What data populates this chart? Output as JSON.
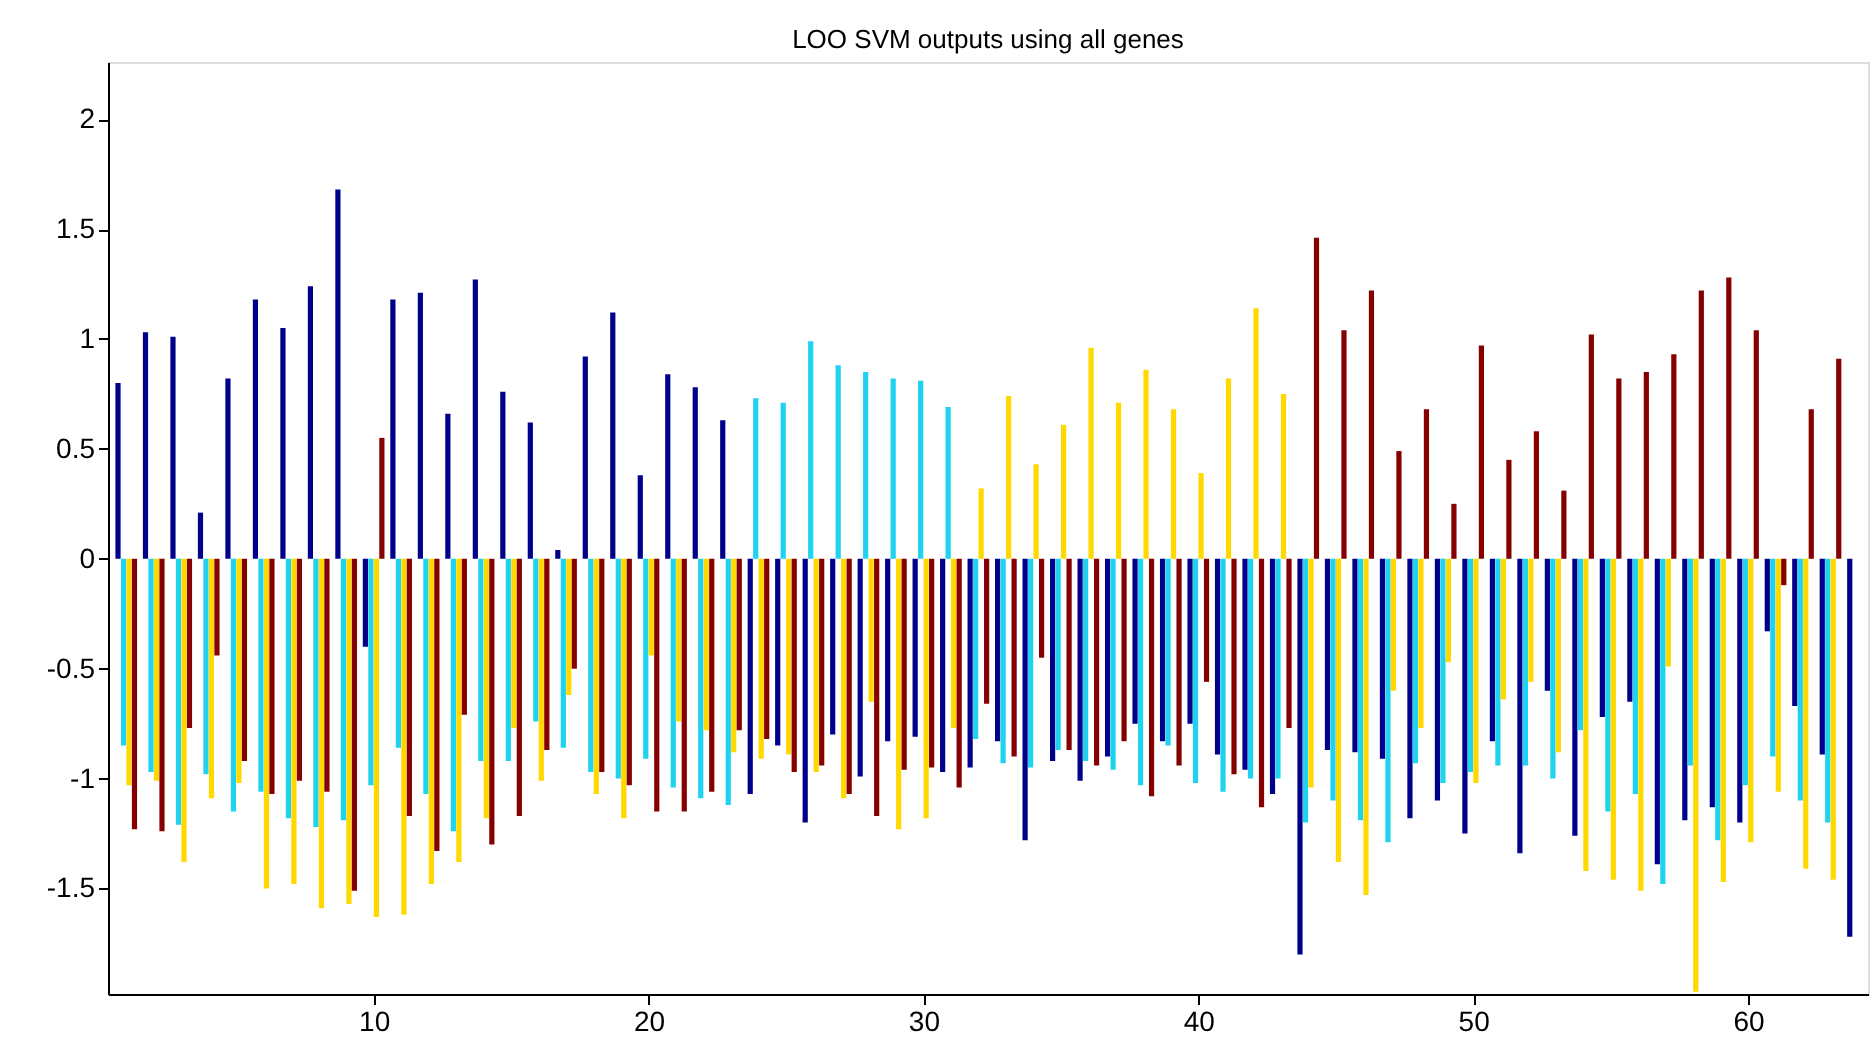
{
  "chart_data": {
    "type": "bar",
    "title": "LOO SVM outputs using all genes",
    "x": [
      1,
      2,
      3,
      4,
      5,
      6,
      7,
      8,
      9,
      10,
      11,
      12,
      13,
      14,
      15,
      16,
      17,
      18,
      19,
      20,
      21,
      22,
      23,
      24,
      25,
      26,
      27,
      28,
      29,
      30,
      31,
      32,
      33,
      34,
      35,
      36,
      37,
      38,
      39,
      40,
      41,
      42,
      43,
      44,
      45,
      46,
      47,
      48,
      49,
      50,
      51,
      52,
      53,
      54,
      55,
      56,
      57,
      58,
      59,
      60,
      61,
      62,
      63,
      64
    ],
    "xlim": [
      0.7,
      64.0
    ],
    "xticks": [
      10,
      20,
      30,
      40,
      50,
      60
    ],
    "ylim": [
      -1.98,
      2.26
    ],
    "yticks": [
      -1.5,
      -1,
      -0.5,
      0,
      0.5,
      1,
      1.5,
      2
    ],
    "grid": false,
    "legend": false,
    "series": [
      {
        "color": "#00008b",
        "values": [
          0.8,
          1.03,
          1.01,
          0.21,
          0.82,
          1.18,
          1.05,
          1.24,
          1.68,
          -0.4,
          1.18,
          1.21,
          0.66,
          1.27,
          0.76,
          0.62,
          0.04,
          0.92,
          1.12,
          0.38,
          0.84,
          0.78,
          0.63,
          -1.07,
          -0.85,
          -1.2,
          -0.8,
          -0.99,
          -0.83,
          -0.81,
          -0.97,
          -0.95,
          -0.83,
          -1.28,
          -0.92,
          -1.01,
          -0.9,
          -0.75,
          -0.83,
          -0.75,
          -0.89,
          -0.96,
          -1.07,
          -1.8,
          -0.87,
          -0.88,
          -0.91,
          -1.18,
          -1.1,
          -1.25,
          -0.83,
          -1.34,
          -0.6,
          -1.26,
          -0.72,
          -0.65,
          -1.39,
          -1.19,
          -1.13,
          -1.2,
          -0.33,
          -0.67,
          -0.89,
          -1.72
        ]
      },
      {
        "color": "#1ed2f0",
        "values": [
          -0.85,
          -0.97,
          -1.21,
          -0.98,
          -1.15,
          -1.06,
          -1.18,
          -1.22,
          -1.19,
          -1.03,
          -0.86,
          -1.07,
          -1.24,
          -0.92,
          -0.92,
          -0.74,
          -0.86,
          -0.97,
          -1.0,
          -0.91,
          -1.04,
          -1.09,
          -1.12,
          0.73,
          0.71,
          0.99,
          0.88,
          0.85,
          0.82,
          0.81,
          0.69,
          -0.82,
          -0.93,
          -0.95,
          -0.87,
          -0.92,
          -0.96,
          -1.03,
          -0.85,
          -1.02,
          -1.06,
          -1.0,
          -1.0,
          -1.2,
          -1.1,
          -1.19,
          -1.29,
          -0.93,
          -1.02,
          -0.97,
          -0.94,
          -0.94,
          -1.0,
          -0.78,
          -1.15,
          -1.07,
          -1.48,
          -0.94,
          -1.28,
          -1.03,
          -0.9,
          -1.1,
          -1.2,
          null
        ]
      },
      {
        "color": "#ffd800",
        "values": [
          -1.03,
          -1.01,
          -1.38,
          -1.09,
          -1.02,
          -1.5,
          -1.48,
          -1.59,
          -1.57,
          -1.63,
          -1.62,
          -1.48,
          -1.38,
          -1.18,
          -0.77,
          -1.01,
          -0.62,
          -1.07,
          -1.18,
          -0.44,
          -0.74,
          -0.78,
          -0.88,
          -0.91,
          -0.89,
          -0.97,
          -1.09,
          -0.65,
          -1.23,
          -1.18,
          -0.77,
          0.32,
          0.74,
          0.43,
          0.61,
          0.96,
          0.71,
          0.86,
          0.68,
          0.39,
          0.82,
          1.14,
          0.75,
          -1.04,
          -1.38,
          -1.53,
          -0.6,
          -0.77,
          -0.47,
          -1.02,
          -0.64,
          -0.56,
          -0.88,
          -1.42,
          -1.46,
          -1.51,
          -0.49,
          -1.97,
          -1.47,
          -1.29,
          -1.06,
          -1.41,
          -1.46,
          null
        ]
      },
      {
        "color": "#850000",
        "values": [
          -1.23,
          -1.24,
          -0.77,
          -0.44,
          -0.92,
          -1.07,
          -1.01,
          -1.06,
          -1.51,
          0.55,
          -1.17,
          -1.33,
          -0.71,
          -1.3,
          -1.17,
          -0.87,
          -0.5,
          -0.97,
          -1.03,
          -1.15,
          -1.15,
          -1.06,
          -0.78,
          -0.82,
          -0.97,
          -0.94,
          -1.07,
          -1.17,
          -0.96,
          -0.95,
          -1.04,
          -0.66,
          -0.9,
          -0.45,
          -0.87,
          -0.94,
          -0.83,
          -1.08,
          -0.94,
          -0.56,
          -0.98,
          -1.13,
          -0.77,
          1.46,
          1.04,
          1.22,
          0.49,
          0.68,
          0.25,
          0.97,
          0.45,
          0.58,
          0.31,
          1.02,
          0.82,
          0.85,
          0.93,
          1.22,
          1.28,
          1.04,
          -0.12,
          0.68,
          0.91,
          null
        ]
      }
    ]
  }
}
